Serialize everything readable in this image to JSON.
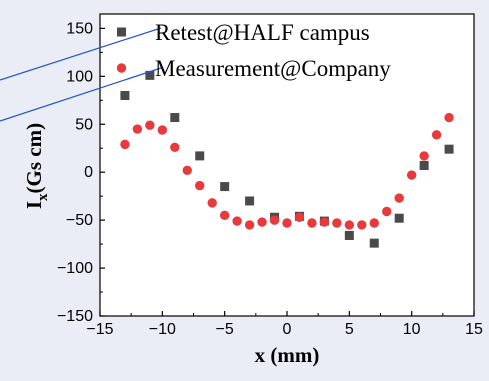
{
  "chart_data": {
    "type": "scatter",
    "xlabel": "x (mm)",
    "ylabel_main": "I",
    "ylabel_sub": "x",
    "ylabel_rest": "(Gs cm)",
    "xlim": [
      -15,
      15
    ],
    "ylim": [
      -150,
      165
    ],
    "xticks": [
      -15,
      -10,
      -5,
      0,
      5,
      10,
      15
    ],
    "yticks": [
      -150,
      -100,
      -50,
      0,
      50,
      100,
      150
    ],
    "xtick_labels": [
      "−15",
      "−10",
      "−5",
      "0",
      "5",
      "10",
      "15"
    ],
    "ytick_labels": [
      "−150",
      "−100",
      "−50",
      "0",
      "50",
      "100",
      "150"
    ],
    "grid": false,
    "legend_position": "top-right",
    "series": [
      {
        "name": "Retest@HALF campus",
        "marker": "square",
        "color": "#4a4a4a",
        "x": [
          -13,
          -11,
          -9,
          -7,
          -5,
          -3,
          -1,
          1,
          3,
          5,
          7,
          9,
          11,
          13
        ],
        "y": [
          80,
          101,
          57,
          17,
          -15,
          -30,
          -47,
          -46,
          -51,
          -66,
          -74,
          -48,
          7,
          24
        ]
      },
      {
        "name": "Measurement@Company",
        "marker": "circle",
        "color": "#e8393c",
        "x": [
          -13,
          -12,
          -11,
          -10,
          -9,
          -8,
          -7,
          -6,
          -5,
          -4,
          -3,
          -2,
          -1,
          0,
          1,
          2,
          3,
          4,
          5,
          6,
          7,
          8,
          9,
          10,
          11,
          12,
          13
        ],
        "y": [
          29,
          45,
          49,
          44,
          26,
          2,
          -14,
          -32,
          -45,
          -51,
          -55,
          -52,
          -50,
          -53,
          -47,
          -53,
          -52,
          -53,
          -55,
          -55,
          -53,
          -41,
          -27,
          -3,
          17,
          39,
          57
        ]
      }
    ]
  },
  "colors": {
    "background": "#eaedf6",
    "plot_background": "#ffffff",
    "annotation_line": "#2255cc"
  }
}
